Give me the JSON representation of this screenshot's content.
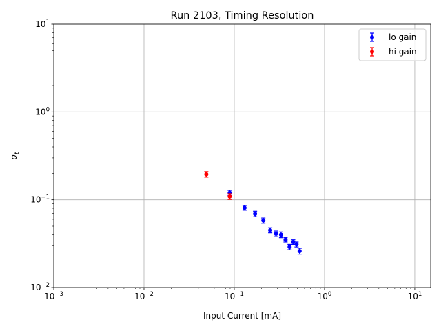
{
  "chart_data": {
    "type": "scatter",
    "title": "Run 2103, Timing Resolution",
    "xlabel": "Input Current [mA]",
    "ylabel_base": "σ",
    "ylabel_sub": "t",
    "xscale": "log",
    "yscale": "log",
    "xlim": [
      0.001,
      15
    ],
    "ylim": [
      0.01,
      10
    ],
    "grid": true,
    "legend_position": "top-right",
    "x_ticks": [
      {
        "value": 0.001,
        "base": "10",
        "exp": "−3"
      },
      {
        "value": 0.01,
        "base": "10",
        "exp": "−2"
      },
      {
        "value": 0.1,
        "base": "10",
        "exp": "−1"
      },
      {
        "value": 1,
        "base": "10",
        "exp": "0"
      },
      {
        "value": 10,
        "base": "10",
        "exp": "1"
      }
    ],
    "y_ticks": [
      {
        "value": 0.01,
        "base": "10",
        "exp": "−2"
      },
      {
        "value": 0.1,
        "base": "10",
        "exp": "−1"
      },
      {
        "value": 1,
        "base": "10",
        "exp": "0"
      },
      {
        "value": 10,
        "base": "10",
        "exp": "1"
      }
    ],
    "series": [
      {
        "name": "lo gain",
        "color": "#0000ff",
        "points": [
          {
            "x": 0.089,
            "y": 0.12,
            "err": 0.008
          },
          {
            "x": 0.13,
            "y": 0.081,
            "err": 0.005
          },
          {
            "x": 0.17,
            "y": 0.069,
            "err": 0.005
          },
          {
            "x": 0.21,
            "y": 0.058,
            "err": 0.004
          },
          {
            "x": 0.25,
            "y": 0.045,
            "err": 0.003
          },
          {
            "x": 0.29,
            "y": 0.041,
            "err": 0.003
          },
          {
            "x": 0.33,
            "y": 0.04,
            "err": 0.003
          },
          {
            "x": 0.37,
            "y": 0.035,
            "err": 0.002
          },
          {
            "x": 0.41,
            "y": 0.029,
            "err": 0.002
          },
          {
            "x": 0.45,
            "y": 0.033,
            "err": 0.002
          },
          {
            "x": 0.49,
            "y": 0.031,
            "err": 0.002
          },
          {
            "x": 0.53,
            "y": 0.026,
            "err": 0.002
          }
        ]
      },
      {
        "name": "hi gain",
        "color": "#ff0000",
        "points": [
          {
            "x": 0.049,
            "y": 0.195,
            "err": 0.014
          },
          {
            "x": 0.089,
            "y": 0.109,
            "err": 0.008
          }
        ]
      }
    ]
  }
}
